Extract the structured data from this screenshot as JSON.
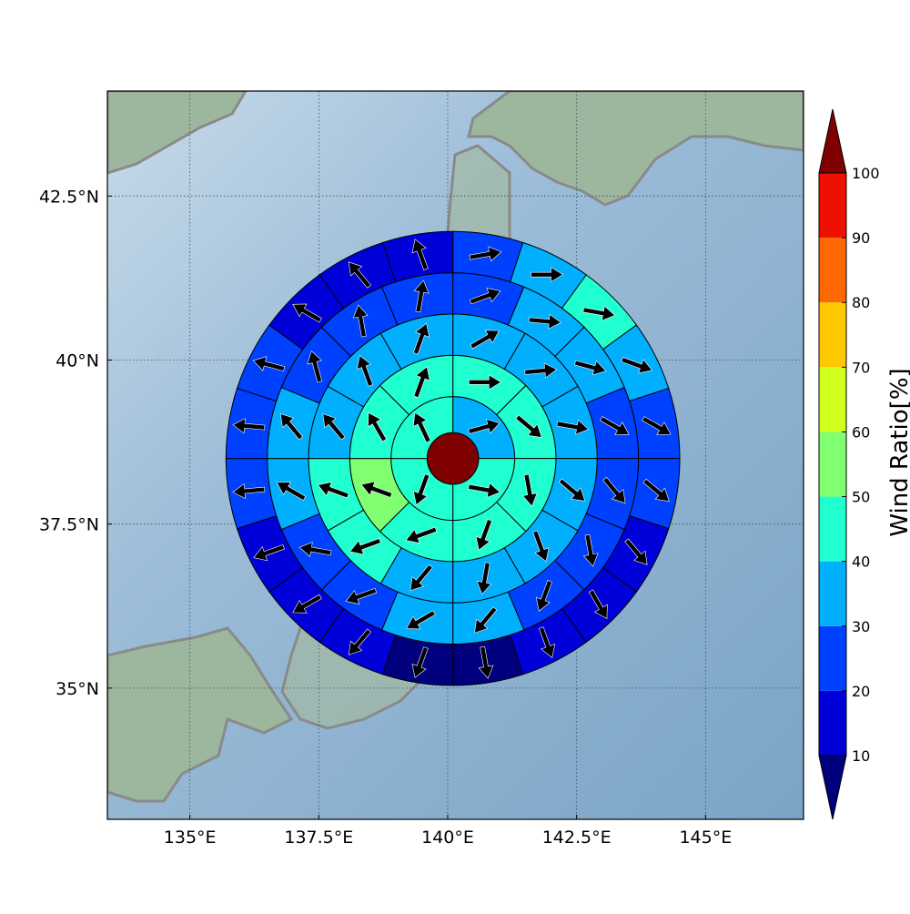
{
  "map": {
    "lon_range": [
      133.4,
      146.9
    ],
    "lat_range": [
      33.0,
      44.1
    ],
    "center": {
      "lon": 140.1,
      "lat": 38.5
    },
    "ring_edges_deg": [
      0.5,
      1.2,
      2.0,
      2.8,
      3.6,
      4.4
    ],
    "sector_counts": [
      1,
      4,
      8,
      12,
      16,
      20
    ],
    "x_ticks": [
      {
        "value": 135.0,
        "label": "135°E"
      },
      {
        "value": 137.5,
        "label": "137.5°E"
      },
      {
        "value": 140.0,
        "label": "140°E"
      },
      {
        "value": 142.5,
        "label": "142.5°E"
      },
      {
        "value": 145.0,
        "label": "145°E"
      }
    ],
    "y_ticks": [
      {
        "value": 35.0,
        "label": "35°N"
      },
      {
        "value": 37.5,
        "label": "37.5°N"
      },
      {
        "value": 40.0,
        "label": "40°N"
      },
      {
        "value": 42.5,
        "label": "42.5°N"
      }
    ],
    "colors": {
      "land": "#9fb8a0",
      "sea_light": "#d6e4f0",
      "sea_dark": "#7fa8c9",
      "coast": "#8a8a8a"
    }
  },
  "colorbar": {
    "label": "Wind Ratio[%]",
    "ticks": [
      "10",
      "20",
      "30",
      "40",
      "50",
      "60",
      "70",
      "80",
      "90",
      "100"
    ],
    "levels": [
      10,
      20,
      30,
      40,
      50,
      60,
      70,
      80,
      90,
      100
    ],
    "colors": [
      "#0000d9",
      "#0040ff",
      "#00b0ff",
      "#20ffd0",
      "#80ff70",
      "#d0ff20",
      "#ffc800",
      "#ff6800",
      "#ee1000"
    ],
    "under_color": "#00007f",
    "over_color": "#7f0000"
  },
  "wind_field": {
    "rings": [
      {
        "ratios": [
          100
        ],
        "directions": []
      },
      {
        "ratios": [
          35,
          45,
          45,
          45
        ],
        "directions": [
          75,
          100,
          200,
          335
        ]
      },
      {
        "ratios": [
          45,
          45,
          45,
          45,
          45,
          55,
          45,
          45
        ],
        "directions": [
          90,
          130,
          170,
          200,
          250,
          290,
          330,
          20
        ],
        "arrow_names": [
          "",
          "",
          "",
          "",
          "",
          "",
          "",
          ""
        ]
      },
      {
        "ratios": [
          35,
          35,
          35,
          35,
          35,
          35,
          35,
          45,
          45,
          35,
          35,
          35
        ],
        "directions": [
          60,
          85,
          100,
          130,
          160,
          190,
          220,
          250,
          290,
          320,
          340,
          20
        ]
      },
      {
        "ratios": [
          25,
          35,
          35,
          25,
          25,
          25,
          25,
          35,
          35,
          25,
          25,
          35,
          35,
          25,
          25,
          25
        ],
        "directions": [
          70,
          95,
          105,
          120,
          140,
          170,
          200,
          220,
          240,
          250,
          280,
          300,
          320,
          345,
          350,
          10
        ]
      },
      {
        "ratios": [
          25,
          35,
          45,
          35,
          25,
          25,
          15,
          15,
          15,
          5,
          5,
          15,
          15,
          15,
          25,
          25,
          25,
          15,
          15,
          15
        ],
        "directions": [
          80,
          90,
          100,
          110,
          120,
          130,
          140,
          150,
          160,
          170,
          200,
          220,
          240,
          250,
          265,
          275,
          285,
          300,
          320,
          340
        ]
      }
    ]
  }
}
